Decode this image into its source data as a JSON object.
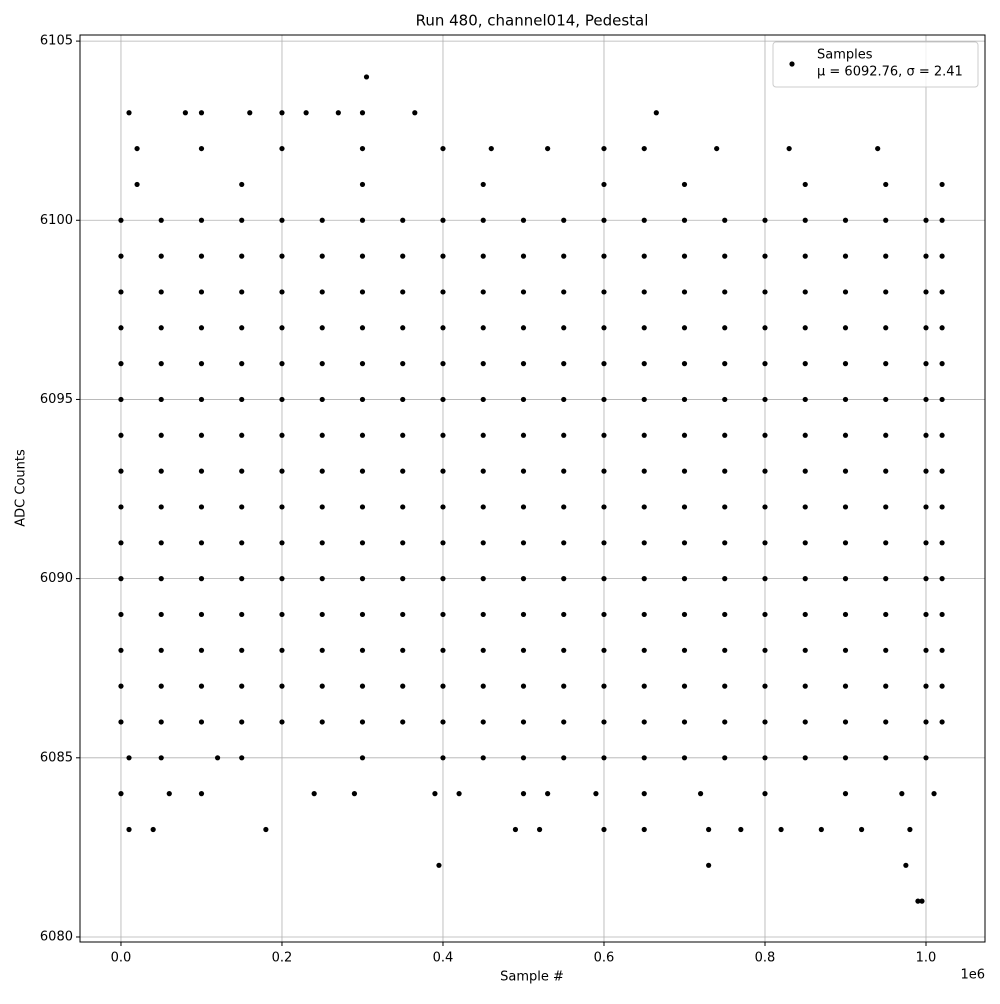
{
  "chart_data": {
    "type": "scatter",
    "title": "Run 480, channel014, Pedestal",
    "xlabel": "Sample #",
    "ylabel": "ADC Counts",
    "x_offset_label": "1e6",
    "legend_name": "Samples",
    "legend_stats": "μ = 6092.76, σ = 2.41",
    "legend_position": "upper right",
    "color": "#000000",
    "grid": true,
    "xlim": [
      -0.0509,
      1.0733
    ],
    "ylim": [
      6079.86,
      6105.17
    ],
    "xticks": [
      {
        "value": 0,
        "label": "0.0"
      },
      0.2,
      0.4,
      0.6,
      0.8,
      {
        "value": 1,
        "label": "1.0"
      }
    ],
    "yticks": [
      6080,
      6085,
      6090,
      6095,
      6100,
      6105
    ],
    "x": [
      0,
      0.05,
      0.1,
      0.15,
      0.2,
      0.25,
      0.3,
      0.35,
      0.4,
      0.45,
      0.5,
      0.55,
      0.6,
      0.65,
      0.7,
      0.75,
      0.8,
      0.85,
      0.9,
      0.95,
      1.0,
      1.02,
      0,
      0.05,
      0.1,
      0.15,
      0.2,
      0.25,
      0.3,
      0.35,
      0.4,
      0.45,
      0.5,
      0.55,
      0.6,
      0.65,
      0.7,
      0.75,
      0.8,
      0.85,
      0.9,
      0.95,
      1.0,
      1.02,
      0,
      0.05,
      0.1,
      0.15,
      0.2,
      0.25,
      0.3,
      0.35,
      0.4,
      0.45,
      0.5,
      0.55,
      0.6,
      0.65,
      0.7,
      0.75,
      0.8,
      0.85,
      0.9,
      0.95,
      1.0,
      1.02,
      0,
      0.05,
      0.1,
      0.15,
      0.2,
      0.25,
      0.3,
      0.35,
      0.4,
      0.45,
      0.5,
      0.55,
      0.6,
      0.65,
      0.7,
      0.75,
      0.8,
      0.85,
      0.9,
      0.95,
      1.0,
      1.02,
      0,
      0.05,
      0.1,
      0.15,
      0.2,
      0.25,
      0.3,
      0.35,
      0.4,
      0.45,
      0.5,
      0.55,
      0.6,
      0.65,
      0.7,
      0.75,
      0.8,
      0.85,
      0.9,
      0.95,
      1.0,
      1.02,
      0,
      0.05,
      0.1,
      0.15,
      0.2,
      0.25,
      0.3,
      0.35,
      0.4,
      0.45,
      0.5,
      0.55,
      0.6,
      0.65,
      0.7,
      0.75,
      0.8,
      0.85,
      0.9,
      0.95,
      1.0,
      1.02,
      0,
      0.05,
      0.1,
      0.15,
      0.2,
      0.25,
      0.3,
      0.35,
      0.4,
      0.45,
      0.5,
      0.55,
      0.6,
      0.65,
      0.7,
      0.75,
      0.8,
      0.85,
      0.9,
      0.95,
      1.0,
      1.02,
      0,
      0.05,
      0.1,
      0.15,
      0.2,
      0.25,
      0.3,
      0.35,
      0.4,
      0.45,
      0.5,
      0.55,
      0.6,
      0.65,
      0.7,
      0.75,
      0.8,
      0.85,
      0.9,
      0.95,
      1.0,
      1.02,
      0,
      0.05,
      0.1,
      0.15,
      0.2,
      0.25,
      0.3,
      0.35,
      0.4,
      0.45,
      0.5,
      0.55,
      0.6,
      0.65,
      0.7,
      0.75,
      0.8,
      0.85,
      0.9,
      0.95,
      1.0,
      1.02,
      0,
      0.05,
      0.1,
      0.15,
      0.2,
      0.25,
      0.3,
      0.35,
      0.4,
      0.45,
      0.5,
      0.55,
      0.6,
      0.65,
      0.7,
      0.75,
      0.8,
      0.85,
      0.9,
      0.95,
      1.0,
      1.02,
      0,
      0.05,
      0.1,
      0.15,
      0.2,
      0.25,
      0.3,
      0.35,
      0.4,
      0.45,
      0.5,
      0.55,
      0.6,
      0.65,
      0.7,
      0.75,
      0.8,
      0.85,
      0.9,
      0.95,
      1.0,
      1.02,
      0,
      0.05,
      0.1,
      0.15,
      0.2,
      0.25,
      0.3,
      0.35,
      0.4,
      0.45,
      0.5,
      0.55,
      0.6,
      0.65,
      0.7,
      0.75,
      0.8,
      0.85,
      0.9,
      0.95,
      1.0,
      1.02,
      0,
      0.05,
      0.1,
      0.15,
      0.2,
      0.25,
      0.3,
      0.35,
      0.4,
      0.45,
      0.5,
      0.55,
      0.6,
      0.65,
      0.7,
      0.75,
      0.8,
      0.85,
      0.9,
      0.95,
      1.0,
      1.02,
      0,
      0.05,
      0.1,
      0.15,
      0.2,
      0.25,
      0.3,
      0.35,
      0.4,
      0.45,
      0.5,
      0.55,
      0.6,
      0.65,
      0.7,
      0.75,
      0.8,
      0.85,
      0.9,
      0.95,
      1.0,
      1.02,
      0,
      0.05,
      0.1,
      0.15,
      0.2,
      0.25,
      0.3,
      0.35,
      0.4,
      0.45,
      0.5,
      0.55,
      0.6,
      0.65,
      0.7,
      0.75,
      0.8,
      0.85,
      0.9,
      0.95,
      1.0,
      1.02,
      0.01,
      0.08,
      0.1,
      0.16,
      0.2,
      0.23,
      0.27,
      0.3,
      0.305,
      0.365,
      0.665,
      0.02,
      0.1,
      0.2,
      0.3,
      0.4,
      0.46,
      0.53,
      0.6,
      0.65,
      0.74,
      0.83,
      0.94,
      0.02,
      0.15,
      0.3,
      0.45,
      0.6,
      0.7,
      0.85,
      0.95,
      1.02,
      0.01,
      0.05,
      0.12,
      0.15,
      0.3,
      0.4,
      0.45,
      0.5,
      0.55,
      0.6,
      0.65,
      0.7,
      0.75,
      0.8,
      0.85,
      0.9,
      0.95,
      1.0,
      0,
      0.06,
      0.1,
      0.24,
      0.29,
      0.39,
      0.42,
      0.5,
      0.53,
      0.59,
      0.65,
      0.72,
      0.8,
      0.9,
      0.97,
      1.01,
      0.01,
      0.04,
      0.18,
      0.49,
      0.52,
      0.6,
      0.65,
      0.73,
      0.77,
      0.82,
      0.87,
      0.92,
      0.98,
      0.395,
      0.73,
      0.975,
      0.99,
      0.995
    ],
    "values": [
      6100,
      6100,
      6100,
      6100,
      6100,
      6100,
      6100,
      6100,
      6100,
      6100,
      6100,
      6100,
      6100,
      6100,
      6100,
      6100,
      6100,
      6100,
      6100,
      6100,
      6100,
      6100,
      6099,
      6099,
      6099,
      6099,
      6099,
      6099,
      6099,
      6099,
      6099,
      6099,
      6099,
      6099,
      6099,
      6099,
      6099,
      6099,
      6099,
      6099,
      6099,
      6099,
      6099,
      6099,
      6098,
      6098,
      6098,
      6098,
      6098,
      6098,
      6098,
      6098,
      6098,
      6098,
      6098,
      6098,
      6098,
      6098,
      6098,
      6098,
      6098,
      6098,
      6098,
      6098,
      6098,
      6098,
      6097,
      6097,
      6097,
      6097,
      6097,
      6097,
      6097,
      6097,
      6097,
      6097,
      6097,
      6097,
      6097,
      6097,
      6097,
      6097,
      6097,
      6097,
      6097,
      6097,
      6097,
      6097,
      6096,
      6096,
      6096,
      6096,
      6096,
      6096,
      6096,
      6096,
      6096,
      6096,
      6096,
      6096,
      6096,
      6096,
      6096,
      6096,
      6096,
      6096,
      6096,
      6096,
      6096,
      6096,
      6095,
      6095,
      6095,
      6095,
      6095,
      6095,
      6095,
      6095,
      6095,
      6095,
      6095,
      6095,
      6095,
      6095,
      6095,
      6095,
      6095,
      6095,
      6095,
      6095,
      6095,
      6095,
      6094,
      6094,
      6094,
      6094,
      6094,
      6094,
      6094,
      6094,
      6094,
      6094,
      6094,
      6094,
      6094,
      6094,
      6094,
      6094,
      6094,
      6094,
      6094,
      6094,
      6094,
      6094,
      6093,
      6093,
      6093,
      6093,
      6093,
      6093,
      6093,
      6093,
      6093,
      6093,
      6093,
      6093,
      6093,
      6093,
      6093,
      6093,
      6093,
      6093,
      6093,
      6093,
      6093,
      6093,
      6092,
      6092,
      6092,
      6092,
      6092,
      6092,
      6092,
      6092,
      6092,
      6092,
      6092,
      6092,
      6092,
      6092,
      6092,
      6092,
      6092,
      6092,
      6092,
      6092,
      6092,
      6092,
      6091,
      6091,
      6091,
      6091,
      6091,
      6091,
      6091,
      6091,
      6091,
      6091,
      6091,
      6091,
      6091,
      6091,
      6091,
      6091,
      6091,
      6091,
      6091,
      6091,
      6091,
      6091,
      6090,
      6090,
      6090,
      6090,
      6090,
      6090,
      6090,
      6090,
      6090,
      6090,
      6090,
      6090,
      6090,
      6090,
      6090,
      6090,
      6090,
      6090,
      6090,
      6090,
      6090,
      6090,
      6089,
      6089,
      6089,
      6089,
      6089,
      6089,
      6089,
      6089,
      6089,
      6089,
      6089,
      6089,
      6089,
      6089,
      6089,
      6089,
      6089,
      6089,
      6089,
      6089,
      6089,
      6089,
      6088,
      6088,
      6088,
      6088,
      6088,
      6088,
      6088,
      6088,
      6088,
      6088,
      6088,
      6088,
      6088,
      6088,
      6088,
      6088,
      6088,
      6088,
      6088,
      6088,
      6088,
      6088,
      6087,
      6087,
      6087,
      6087,
      6087,
      6087,
      6087,
      6087,
      6087,
      6087,
      6087,
      6087,
      6087,
      6087,
      6087,
      6087,
      6087,
      6087,
      6087,
      6087,
      6087,
      6087,
      6086,
      6086,
      6086,
      6086,
      6086,
      6086,
      6086,
      6086,
      6086,
      6086,
      6086,
      6086,
      6086,
      6086,
      6086,
      6086,
      6086,
      6086,
      6086,
      6086,
      6086,
      6086,
      6103,
      6103,
      6103,
      6103,
      6103,
      6103,
      6103,
      6103,
      6104,
      6103,
      6103,
      6102,
      6102,
      6102,
      6102,
      6102,
      6102,
      6102,
      6102,
      6102,
      6102,
      6102,
      6102,
      6101,
      6101,
      6101,
      6101,
      6101,
      6101,
      6101,
      6101,
      6101,
      6085,
      6085,
      6085,
      6085,
      6085,
      6085,
      6085,
      6085,
      6085,
      6085,
      6085,
      6085,
      6085,
      6085,
      6085,
      6085,
      6085,
      6085,
      6084,
      6084,
      6084,
      6084,
      6084,
      6084,
      6084,
      6084,
      6084,
      6084,
      6084,
      6084,
      6084,
      6084,
      6084,
      6084,
      6083,
      6083,
      6083,
      6083,
      6083,
      6083,
      6083,
      6083,
      6083,
      6083,
      6083,
      6083,
      6083,
      6082,
      6082,
      6082,
      6081,
      6081
    ]
  }
}
